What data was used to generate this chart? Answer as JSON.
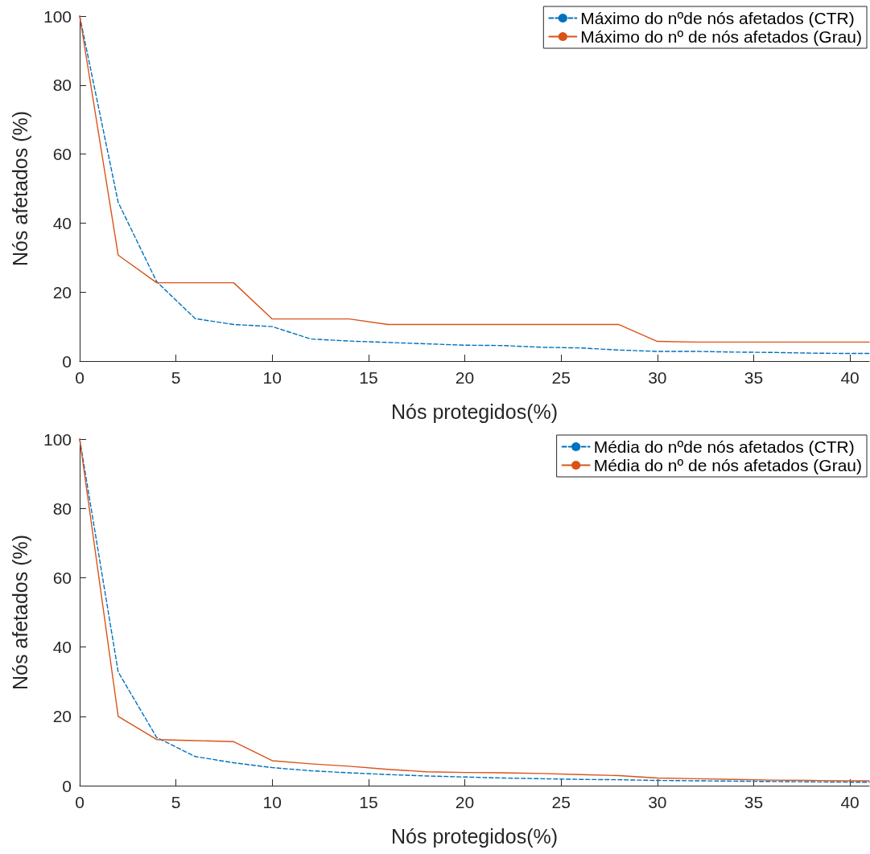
{
  "chart_data": [
    {
      "type": "line",
      "xlabel": "Nós protegidos(%)",
      "ylabel": "Nós afetados (%)",
      "xlim": [
        0,
        41
      ],
      "xticks": [
        0,
        5,
        10,
        15,
        20,
        25,
        30,
        35,
        40
      ],
      "ylim": [
        0,
        100
      ],
      "yticks": [
        0,
        20,
        40,
        60,
        80,
        100
      ],
      "grid": false,
      "legend": "top right",
      "x": [
        0,
        2,
        4,
        6,
        8,
        10,
        12,
        14,
        16,
        18,
        20,
        22,
        24,
        26,
        28,
        30,
        32,
        34,
        36,
        38,
        40,
        41
      ],
      "series": [
        {
          "name": "Máximo do nºde nós afetados (CTR)",
          "color": "#0072bd",
          "line_style": "dashed",
          "values": [
            100,
            46,
            23,
            12.3,
            10.6,
            10,
            6.4,
            5.8,
            5.4,
            5,
            4.6,
            4.5,
            4,
            3.8,
            3.2,
            2.8,
            2.8,
            2.6,
            2.5,
            2.3,
            2.2,
            2.2
          ]
        },
        {
          "name": "Máximo do nº de nós afetados (Grau)",
          "color": "#d95319",
          "line_style": "solid",
          "values": [
            100,
            30.7,
            22.7,
            22.7,
            22.7,
            12.2,
            12.2,
            12.2,
            10.6,
            10.6,
            10.6,
            10.6,
            10.6,
            10.6,
            10.6,
            5.7,
            5.5,
            5.5,
            5.5,
            5.5,
            5.5,
            5.5
          ]
        }
      ]
    },
    {
      "type": "line",
      "xlabel": "Nós protegidos(%)",
      "ylabel": "Nós afetados (%)",
      "xlim": [
        0,
        41
      ],
      "xticks": [
        0,
        5,
        10,
        15,
        20,
        25,
        30,
        35,
        40
      ],
      "ylim": [
        0,
        100
      ],
      "yticks": [
        0,
        20,
        40,
        60,
        80,
        100
      ],
      "grid": false,
      "legend": "top right",
      "x": [
        0,
        2,
        4,
        6,
        8,
        10,
        12,
        14,
        16,
        18,
        20,
        22,
        24,
        26,
        28,
        30,
        32,
        34,
        36,
        38,
        40,
        41
      ],
      "series": [
        {
          "name": "Média do nºde nós afetados (CTR)",
          "color": "#0072bd",
          "line_style": "dashed",
          "values": [
            100,
            32.8,
            13.9,
            8.4,
            6.6,
            5.2,
            4.3,
            3.7,
            3.2,
            2.8,
            2.5,
            2.2,
            2,
            1.8,
            1.7,
            1.5,
            1.4,
            1.3,
            1.2,
            1.1,
            1,
            1
          ]
        },
        {
          "name": "Média do nº de nós afetados (Grau)",
          "color": "#d95319",
          "line_style": "solid",
          "values": [
            100,
            20,
            13.3,
            13,
            12.7,
            7.2,
            6.3,
            5.6,
            4.7,
            4,
            3.8,
            3.7,
            3.5,
            3.2,
            2.9,
            2.2,
            2,
            1.8,
            1.6,
            1.5,
            1.4,
            1.4
          ]
        }
      ]
    }
  ]
}
